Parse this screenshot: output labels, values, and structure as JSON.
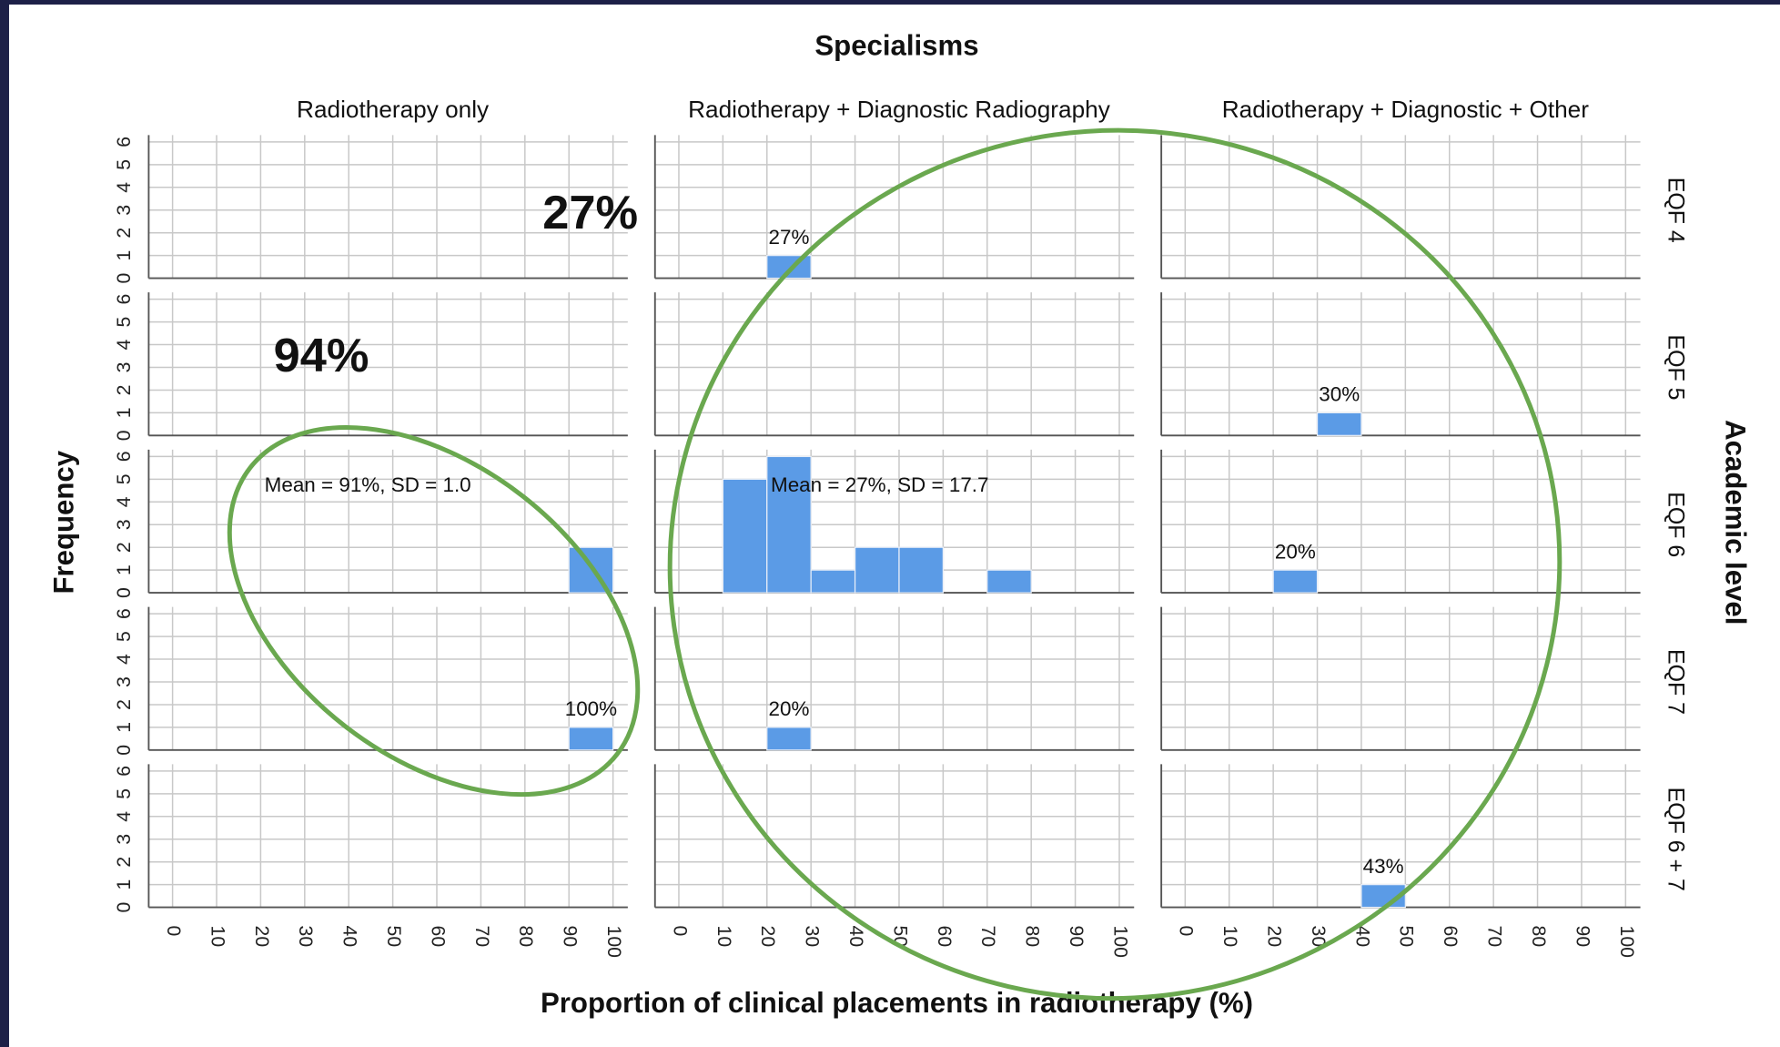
{
  "chart_data": {
    "type": "histogram",
    "title": "Specialisms",
    "x_label": "Proportion of clinical placements in radiotherapy (%)",
    "y_label": "Frequency",
    "row_title": "Academic level",
    "columns": [
      "Radiotherapy only",
      "Radiotherapy + Diagnostic Radiography",
      "Radiotherapy + Diagnostic + Other"
    ],
    "bins": [
      0,
      10,
      20,
      30,
      40,
      50,
      60,
      70,
      80,
      90,
      100
    ],
    "xlim": [
      0,
      100
    ],
    "xticks": [
      0,
      10,
      20,
      30,
      40,
      50,
      60,
      70,
      80,
      90,
      100
    ],
    "ylim": [
      0,
      6
    ],
    "yticks": [
      0,
      1,
      2,
      3,
      4,
      5,
      6
    ],
    "color": "#5b9be6",
    "grid": true,
    "rows": [
      {
        "label": "EQF 4",
        "panels": [
          {
            "counts": [
              0,
              0,
              0,
              0,
              0,
              0,
              0,
              0,
              0,
              0
            ]
          },
          {
            "counts": [
              0,
              0,
              1,
              0,
              0,
              0,
              0,
              0,
              0,
              0
            ],
            "label": "27%"
          },
          {
            "counts": [
              0,
              0,
              0,
              0,
              0,
              0,
              0,
              0,
              0,
              0
            ]
          }
        ]
      },
      {
        "label": "EQF 5",
        "panels": [
          {
            "counts": [
              0,
              0,
              0,
              0,
              0,
              0,
              0,
              0,
              0,
              0
            ]
          },
          {
            "counts": [
              0,
              0,
              0,
              0,
              0,
              0,
              0,
              0,
              0,
              0
            ]
          },
          {
            "counts": [
              0,
              0,
              0,
              1,
              0,
              0,
              0,
              0,
              0,
              0
            ],
            "label": "30%"
          }
        ]
      },
      {
        "label": "EQF 6",
        "panels": [
          {
            "counts": [
              0,
              0,
              0,
              0,
              0,
              0,
              0,
              0,
              0,
              2
            ],
            "note": "Mean = 91%, SD = 1.0"
          },
          {
            "counts": [
              0,
              5,
              6,
              1,
              2,
              2,
              0,
              1,
              0,
              0
            ],
            "note": "Mean = 27%, SD = 17.7"
          },
          {
            "counts": [
              0,
              0,
              1,
              0,
              0,
              0,
              0,
              0,
              0,
              0
            ],
            "label": "20%"
          }
        ]
      },
      {
        "label": "EQF 7",
        "panels": [
          {
            "counts": [
              0,
              0,
              0,
              0,
              0,
              0,
              0,
              0,
              0,
              1
            ],
            "label": "100%"
          },
          {
            "counts": [
              0,
              0,
              1,
              0,
              0,
              0,
              0,
              0,
              0,
              0
            ],
            "label": "20%"
          },
          {
            "counts": [
              0,
              0,
              0,
              0,
              0,
              0,
              0,
              0,
              0,
              0
            ]
          }
        ]
      },
      {
        "label": "EQF 6 + 7",
        "panels": [
          {
            "counts": [
              0,
              0,
              0,
              0,
              0,
              0,
              0,
              0,
              0,
              0
            ]
          },
          {
            "counts": [
              0,
              0,
              0,
              0,
              0,
              0,
              0,
              0,
              0,
              0
            ]
          },
          {
            "counts": [
              0,
              0,
              0,
              0,
              1,
              0,
              0,
              0,
              0,
              0
            ],
            "label": "43%"
          }
        ]
      }
    ]
  },
  "overlay": {
    "annotations": [
      "27%",
      "94%"
    ],
    "color": "#6aa84f"
  }
}
